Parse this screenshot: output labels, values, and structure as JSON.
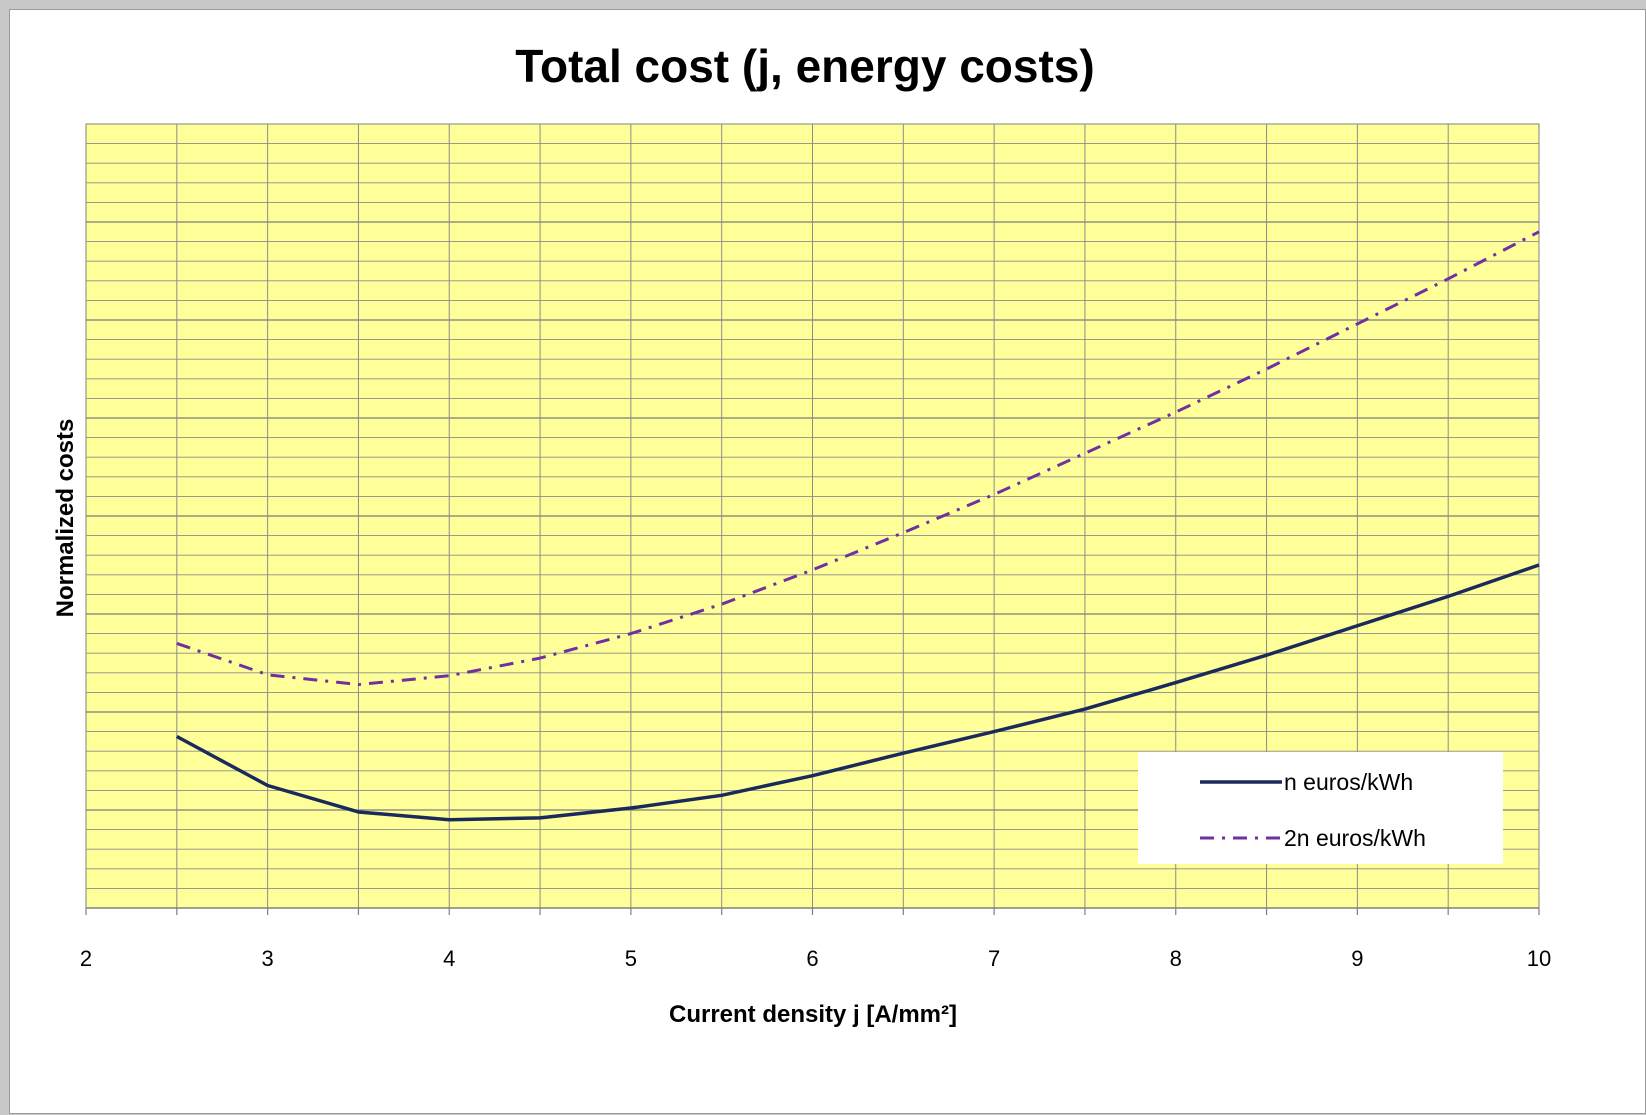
{
  "chart_data": {
    "type": "line",
    "title": "Total cost (j, energy costs)",
    "xlabel": "Current density j [A/mm²]",
    "ylabel": "Normalized costs",
    "xlim": [
      2,
      10
    ],
    "ylim": [
      0,
      8
    ],
    "x_ticks": [
      "2",
      "3",
      "4",
      "5",
      "6",
      "7",
      "8",
      "9",
      "10"
    ],
    "y_tick_labels_shown": false,
    "grid": true,
    "legend_position": "bottom-right",
    "plot_background": "#ffff99",
    "series": [
      {
        "name": "n euros/kWh",
        "color": "#1a2a5a",
        "line_style": "solid",
        "x": [
          2.5,
          3,
          3.5,
          4,
          4.5,
          5,
          5.5,
          6,
          6.5,
          7,
          7.5,
          8,
          8.5,
          9,
          9.5,
          10
        ],
        "y": [
          1.75,
          1.25,
          0.98,
          0.9,
          0.92,
          1.02,
          1.15,
          1.35,
          1.58,
          1.8,
          2.03,
          2.3,
          2.58,
          2.88,
          3.18,
          3.5
        ]
      },
      {
        "name": "2n euros/kWh",
        "color": "#7030a0",
        "line_style": "dash-dot",
        "x": [
          2.5,
          3,
          3.5,
          4,
          4.5,
          5,
          5.5,
          6,
          6.5,
          7,
          7.5,
          8,
          8.5,
          9,
          9.5,
          10
        ],
        "y": [
          2.7,
          2.38,
          2.28,
          2.37,
          2.55,
          2.8,
          3.1,
          3.45,
          3.83,
          4.22,
          4.64,
          5.06,
          5.5,
          5.96,
          6.42,
          6.9
        ]
      }
    ]
  }
}
